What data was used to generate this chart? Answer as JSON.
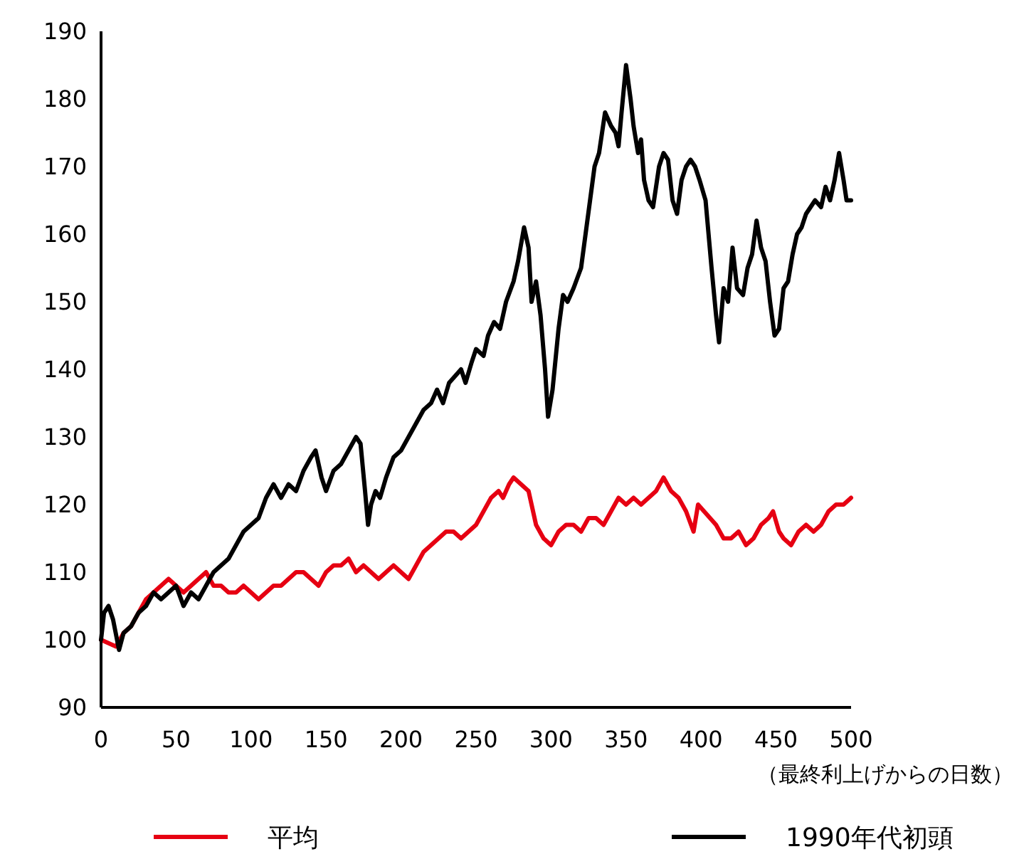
{
  "chart_data": {
    "type": "line",
    "xlabel": "（最終利上げからの日数）",
    "xlim": [
      0,
      500
    ],
    "xticks": [
      0,
      50,
      100,
      150,
      200,
      250,
      300,
      350,
      400,
      450,
      500
    ],
    "ylim": [
      90,
      190
    ],
    "yticks": [
      90,
      100,
      110,
      120,
      130,
      140,
      150,
      160,
      170,
      180,
      190
    ],
    "grid": false,
    "legend": "bottom",
    "marker": "none",
    "line_style": "solid",
    "series": [
      {
        "name": "平均",
        "color": "#e60012",
        "x": [
          0,
          5,
          10,
          15,
          20,
          25,
          30,
          35,
          40,
          45,
          50,
          55,
          60,
          65,
          70,
          75,
          80,
          85,
          90,
          95,
          100,
          105,
          110,
          115,
          120,
          125,
          130,
          135,
          140,
          145,
          150,
          155,
          160,
          165,
          170,
          175,
          180,
          185,
          190,
          195,
          200,
          205,
          210,
          215,
          220,
          225,
          230,
          235,
          240,
          245,
          250,
          255,
          260,
          265,
          268,
          272,
          275,
          280,
          285,
          290,
          295,
          300,
          305,
          310,
          315,
          320,
          325,
          330,
          335,
          340,
          345,
          350,
          355,
          360,
          365,
          370,
          375,
          380,
          385,
          390,
          395,
          398,
          402,
          410,
          415,
          420,
          425,
          430,
          435,
          440,
          445,
          448,
          452,
          455,
          460,
          465,
          470,
          475,
          480,
          485,
          490,
          495,
          500
        ],
        "values": [
          100,
          99.5,
          99,
          101,
          102,
          104,
          106,
          107,
          108,
          109,
          108,
          107,
          108,
          109,
          110,
          108,
          108,
          107,
          107,
          108,
          107,
          106,
          107,
          108,
          108,
          109,
          110,
          110,
          109,
          108,
          110,
          111,
          111,
          112,
          110,
          111,
          110,
          109,
          110,
          111,
          110,
          109,
          111,
          113,
          114,
          115,
          116,
          116,
          115,
          116,
          117,
          119,
          121,
          122,
          121,
          123,
          124,
          123,
          122,
          117,
          115,
          114,
          116,
          117,
          117,
          116,
          118,
          118,
          117,
          119,
          121,
          120,
          121,
          120,
          121,
          122,
          124,
          122,
          121,
          119,
          116,
          120,
          119,
          117,
          115,
          115,
          116,
          114,
          115,
          117,
          118,
          119,
          116,
          115,
          114,
          116,
          117,
          116,
          117,
          119,
          120,
          120,
          121
        ]
      },
      {
        "name": "1990年代初頭",
        "color": "#000000",
        "x": [
          0,
          2,
          5,
          8,
          12,
          15,
          20,
          25,
          30,
          35,
          40,
          45,
          50,
          55,
          60,
          65,
          70,
          75,
          80,
          85,
          90,
          95,
          100,
          105,
          110,
          115,
          120,
          125,
          130,
          135,
          140,
          143,
          147,
          150,
          155,
          160,
          165,
          170,
          173,
          176,
          178,
          180,
          183,
          186,
          190,
          195,
          200,
          205,
          210,
          215,
          220,
          224,
          228,
          232,
          236,
          240,
          243,
          247,
          250,
          255,
          258,
          262,
          266,
          270,
          275,
          278,
          282,
          285,
          287,
          290,
          293,
          296,
          298,
          301,
          305,
          308,
          311,
          315,
          320,
          323,
          326,
          329,
          332,
          336,
          340,
          343,
          345,
          347,
          350,
          353,
          355,
          358,
          360,
          362,
          365,
          368,
          372,
          375,
          378,
          381,
          384,
          387,
          390,
          393,
          396,
          399,
          403,
          407,
          410,
          412,
          415,
          418,
          421,
          424,
          428,
          431,
          434,
          437,
          440,
          443,
          446,
          449,
          452,
          455,
          458,
          461,
          464,
          467,
          470,
          473,
          476,
          480,
          483,
          486,
          489,
          492,
          495,
          497,
          500
        ],
        "values": [
          100,
          104,
          105,
          103,
          98.5,
          101,
          102,
          104,
          105,
          107,
          106,
          107,
          108,
          105,
          107,
          106,
          108,
          110,
          111,
          112,
          114,
          116,
          117,
          118,
          121,
          123,
          121,
          123,
          122,
          125,
          127,
          128,
          124,
          122,
          125,
          126,
          128,
          130,
          129,
          122,
          117,
          120,
          122,
          121,
          124,
          127,
          128,
          130,
          132,
          134,
          135,
          137,
          135,
          138,
          139,
          140,
          138,
          141,
          143,
          142,
          145,
          147,
          146,
          150,
          153,
          156,
          161,
          158,
          150,
          153,
          148,
          140,
          133,
          137,
          146,
          151,
          150,
          152,
          155,
          160,
          165,
          170,
          172,
          178,
          176,
          175,
          173,
          178,
          185,
          180,
          176,
          172,
          174,
          168,
          165,
          164,
          170,
          172,
          171,
          165,
          163,
          168,
          170,
          171,
          170,
          168,
          165,
          155,
          148,
          144,
          152,
          150,
          158,
          152,
          151,
          155,
          157,
          162,
          158,
          156,
          150,
          145,
          146,
          152,
          153,
          157,
          160,
          161,
          163,
          164,
          165,
          164,
          167,
          165,
          168,
          172,
          168,
          165,
          165
        ]
      }
    ]
  }
}
